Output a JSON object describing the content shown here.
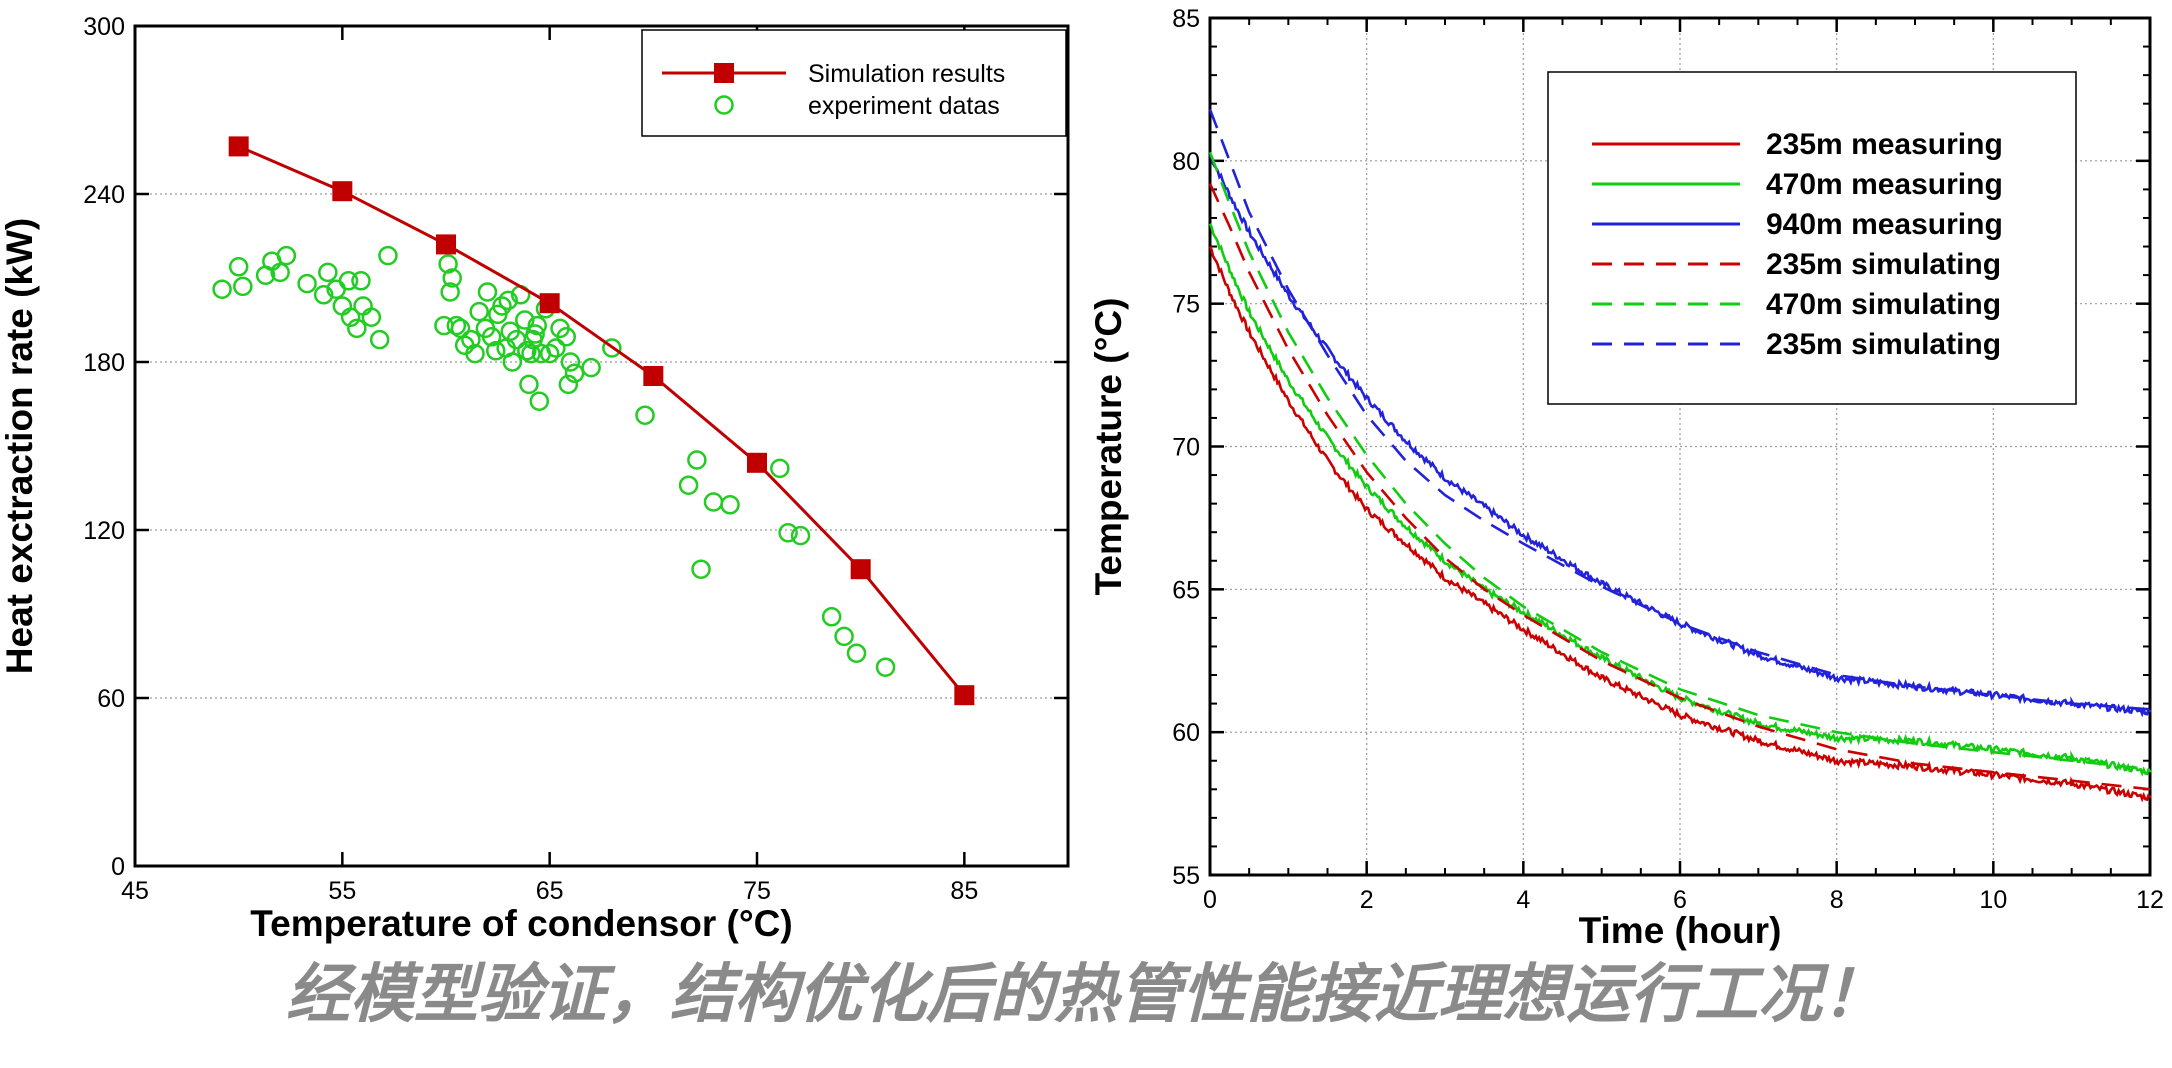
{
  "caption": "经模型验证，结构优化后的热管性能接近理想运行工况！",
  "chart_data": [
    {
      "type": "scatter",
      "xlabel": "Temperature of condensor (°C)",
      "ylabel": "Heat exctraction rate (kW)",
      "xlim": [
        45,
        90
      ],
      "ylim": [
        0,
        300
      ],
      "xticks": [
        45,
        55,
        65,
        75,
        85
      ],
      "yticks": [
        0,
        60,
        120,
        180,
        240,
        300
      ],
      "grid": "dotted gridlines at ticks",
      "legend_position": "top-right",
      "series": [
        {
          "name": "Simulation results",
          "style": "line-with-square-markers",
          "color": "#c00000",
          "x": [
            50,
            55,
            60,
            65,
            70,
            75,
            80,
            85
          ],
          "y": [
            257,
            241,
            222,
            201,
            175,
            144,
            106,
            61
          ]
        },
        {
          "name": "experiment datas",
          "style": "hollow-circles",
          "color": "#22cc22",
          "x": [
            49.2,
            50,
            50.2,
            51.3,
            51.6,
            52,
            52.3,
            53.3,
            54.1,
            54.3,
            54.7,
            55,
            55.3,
            55.4,
            55.7,
            55.9,
            56,
            56.4,
            56.8,
            57.2,
            59.9,
            60.1,
            60.2,
            60.3,
            60.5,
            60.7,
            60.9,
            61.2,
            61.4,
            61.6,
            61.9,
            62,
            62.2,
            62.4,
            62.5,
            62.7,
            62.9,
            63,
            63.1,
            63.2,
            63.4,
            63.6,
            63.8,
            63.9,
            64,
            64.1,
            64.2,
            64.3,
            64.4,
            64.5,
            64.6,
            64.8,
            65,
            65.3,
            65.5,
            65.8,
            65.9,
            66,
            66.2,
            67,
            68,
            69.6,
            71.7,
            72.1,
            72.3,
            72.9,
            73.7,
            76.1,
            76.5,
            77.1,
            78.6,
            79.2,
            79.8,
            81.2
          ],
          "y": [
            206,
            214,
            207,
            211,
            216,
            212,
            218,
            208,
            204,
            212,
            206,
            200,
            209,
            196,
            192,
            209,
            200,
            196,
            188,
            218,
            193,
            215,
            205,
            210,
            193,
            192,
            186,
            188,
            183,
            198,
            192,
            205,
            189,
            184,
            197,
            200,
            185,
            202,
            191,
            180,
            188,
            204,
            195,
            184,
            172,
            183,
            188,
            190,
            193,
            166,
            183,
            199,
            183,
            185,
            192,
            189,
            172,
            180,
            176,
            178,
            185,
            161,
            136,
            145,
            106,
            130,
            129,
            142,
            119,
            118,
            89,
            82,
            76,
            71
          ]
        }
      ]
    },
    {
      "type": "line",
      "xlabel": "Time (hour)",
      "ylabel": "Temperature (°C)",
      "xlim": [
        0,
        12
      ],
      "ylim": [
        55,
        85
      ],
      "xticks": [
        0,
        2,
        4,
        6,
        8,
        10,
        12
      ],
      "yticks": [
        55,
        60,
        65,
        70,
        75,
        80,
        85
      ],
      "grid": "dotted gridlines at ticks",
      "legend_position": "top-right",
      "series": [
        {
          "name": "235m measuring",
          "style": "solid",
          "color": "#cc0000",
          "x": [
            0,
            0.25,
            0.5,
            1,
            1.5,
            2,
            2.5,
            3,
            3.5,
            4,
            5,
            6,
            7,
            8,
            9,
            10,
            11,
            12
          ],
          "y": [
            77,
            75.4,
            74,
            71.6,
            69.5,
            67.8,
            66.6,
            65.4,
            64.5,
            63.6,
            61.9,
            60.6,
            59.7,
            59,
            58.8,
            58.5,
            58.2,
            57.7
          ]
        },
        {
          "name": "470m measuring",
          "style": "solid",
          "color": "#11cc11",
          "x": [
            0,
            0.25,
            0.5,
            1,
            1.5,
            2,
            2.5,
            3,
            3.5,
            4,
            5,
            6,
            7,
            8,
            9,
            10,
            11,
            12
          ],
          "y": [
            77.8,
            76.2,
            74.7,
            72.3,
            70.3,
            68.6,
            67.2,
            66,
            65,
            64.2,
            62.6,
            61.2,
            60.3,
            59.8,
            59.7,
            59.4,
            59.1,
            58.6
          ]
        },
        {
          "name": "940m measuring",
          "style": "solid",
          "color": "#2222dd",
          "x": [
            0,
            0.25,
            0.5,
            1,
            1.5,
            2,
            2.5,
            3,
            3.5,
            4,
            5,
            6,
            7,
            8,
            9,
            10,
            11,
            12
          ],
          "y": [
            80.2,
            78.8,
            77.5,
            75.3,
            73.4,
            71.7,
            70.2,
            68.9,
            67.9,
            66.9,
            65.2,
            63.8,
            62.7,
            61.9,
            61.6,
            61.3,
            61,
            60.7
          ]
        },
        {
          "name": "235m simulating",
          "style": "dashed",
          "color": "#cc0000",
          "x": [
            0,
            0.25,
            0.5,
            1,
            1.5,
            2,
            2.5,
            3,
            3.5,
            4,
            5,
            6,
            7,
            8,
            9,
            10,
            11,
            12
          ],
          "y": [
            79.2,
            77.7,
            76.1,
            73.4,
            71.1,
            69.1,
            67.5,
            66.1,
            65,
            64.1,
            62.5,
            61.2,
            60.2,
            59.4,
            58.9,
            58.6,
            58.3,
            58
          ]
        },
        {
          "name": "470m simulating",
          "style": "dashed",
          "color": "#11cc11",
          "x": [
            0,
            0.25,
            0.5,
            1,
            1.5,
            2,
            2.5,
            3,
            3.5,
            4,
            5,
            6,
            7,
            8,
            9,
            10,
            11,
            12
          ],
          "y": [
            80.3,
            78.5,
            76.8,
            74,
            71.7,
            69.7,
            68,
            66.6,
            65.4,
            64.4,
            62.8,
            61.5,
            60.6,
            60,
            59.6,
            59.3,
            59,
            58.7
          ]
        },
        {
          "name": "235m simulating",
          "style": "dashed",
          "color": "#2222dd",
          "x": [
            0,
            0.25,
            0.5,
            1,
            1.5,
            2,
            2.5,
            3,
            3.5,
            4,
            5,
            6,
            7,
            8,
            9,
            10,
            11,
            12
          ],
          "y": [
            81.8,
            80,
            78.2,
            75.5,
            73.2,
            71.1,
            69.5,
            68.3,
            67.4,
            66.6,
            65.1,
            63.8,
            62.8,
            62,
            61.6,
            61.3,
            61,
            60.8
          ]
        }
      ]
    }
  ]
}
